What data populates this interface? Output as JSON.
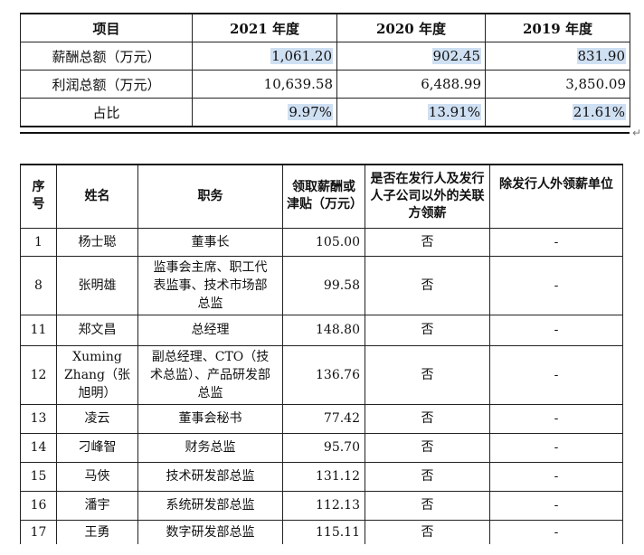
{
  "summary_table": {
    "headers": [
      "项目",
      "2021 年度",
      "2020 年度",
      "2019 年度"
    ],
    "rows": [
      {
        "label": "薪酬总额（万元）",
        "values": [
          "1,061.20",
          "902.45",
          "831.90"
        ]
      },
      {
        "label": "利润总额（万元）",
        "values": [
          "10,639.58",
          "6,488.99",
          "3,850.09"
        ]
      },
      {
        "label": "占比",
        "values": [
          "9.97%",
          "13.91%",
          "21.61%"
        ]
      }
    ]
  },
  "return_mark": "↵",
  "personnel_table": {
    "headers": {
      "seq": "序号",
      "name": "姓名",
      "role": "职务",
      "pay": "领取薪酬或津贴（万元）",
      "affiliate": "是否在发行人及发行人子公司以外的关联方领薪",
      "outside": "除发行人外领薪单位"
    },
    "rows": [
      {
        "seq": "1",
        "name": "杨士聪",
        "role": "董事长",
        "pay": "105.00",
        "affiliate": "否",
        "outside": "-"
      },
      {
        "seq": "8",
        "name": "张明雄",
        "role": "监事会主席、职工代表监事、技术市场部总监",
        "pay": "99.58",
        "affiliate": "否",
        "outside": "-"
      },
      {
        "seq": "11",
        "name": "郑文昌",
        "role": "总经理",
        "pay": "148.80",
        "affiliate": "否",
        "outside": "-"
      },
      {
        "seq": "12",
        "name": "Xuming Zhang（张旭明）",
        "role": "副总经理、CTO（技术总监）、产品研发部总监",
        "pay": "136.76",
        "affiliate": "否",
        "outside": "-"
      },
      {
        "seq": "13",
        "name": "凌云",
        "role": "董事会秘书",
        "pay": "77.42",
        "affiliate": "否",
        "outside": "-"
      },
      {
        "seq": "14",
        "name": "刁峰智",
        "role": "财务总监",
        "pay": "95.70",
        "affiliate": "否",
        "outside": "-"
      },
      {
        "seq": "15",
        "name": "马俠",
        "role": "技术研发部总监",
        "pay": "131.12",
        "affiliate": "否",
        "outside": "-"
      },
      {
        "seq": "16",
        "name": "潘宇",
        "role": "系统研发部总监",
        "pay": "112.13",
        "affiliate": "否",
        "outside": "-"
      },
      {
        "seq": "17",
        "name": "王勇",
        "role": "数字研发部总监",
        "pay": "115.11",
        "affiliate": "否",
        "outside": "-"
      }
    ]
  }
}
